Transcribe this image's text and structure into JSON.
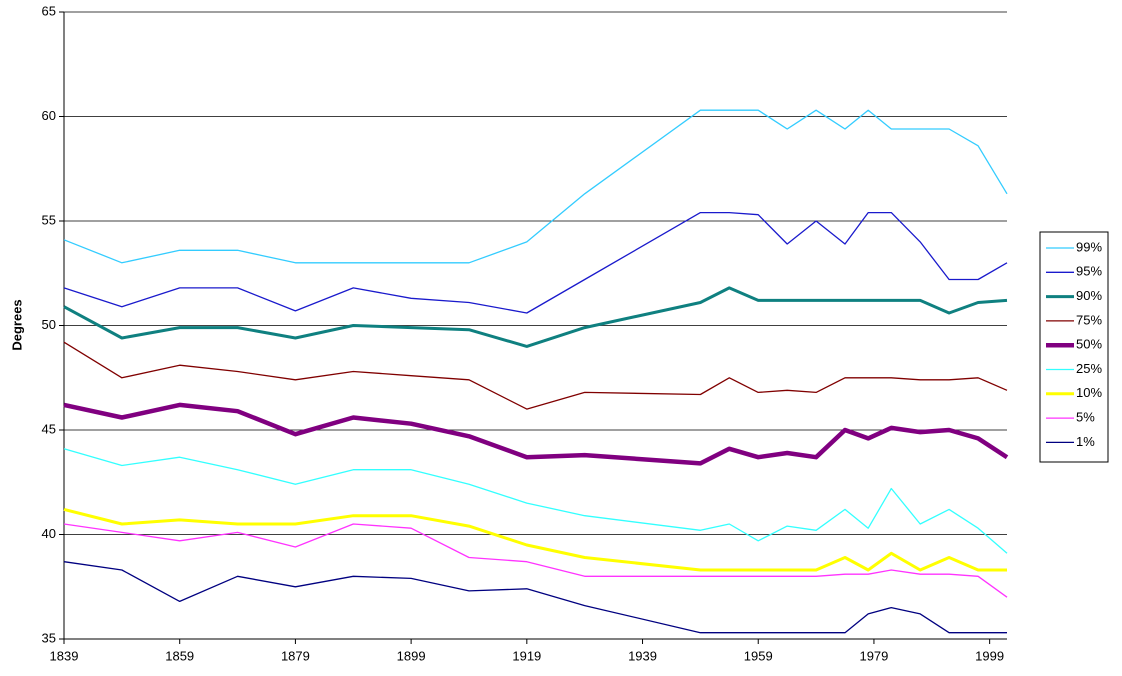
{
  "chart_data": {
    "type": "line",
    "y_label": "Degrees",
    "x": [
      1839,
      1849,
      1859,
      1869,
      1879,
      1889,
      1899,
      1909,
      1919,
      1929,
      1949,
      1954,
      1959,
      1964,
      1969,
      1974,
      1978,
      1982,
      1987,
      1992,
      1997,
      2002
    ],
    "xlim": [
      1839,
      2002
    ],
    "xticks": [
      1839,
      1859,
      1879,
      1899,
      1919,
      1939,
      1959,
      1979,
      1999
    ],
    "ylim": [
      35,
      65
    ],
    "yticks": [
      35,
      40,
      45,
      50,
      55,
      60,
      65
    ],
    "grid": true,
    "legend": "right",
    "series": [
      {
        "name": "99%",
        "color": "#33ccff",
        "line_width": 1.3,
        "values": [
          54.1,
          53.0,
          53.6,
          53.6,
          53.0,
          53.0,
          53.0,
          53.0,
          54.0,
          56.3,
          60.3,
          60.3,
          60.3,
          59.4,
          60.3,
          59.4,
          60.3,
          59.4,
          59.4,
          59.4,
          58.6,
          56.3
        ]
      },
      {
        "name": "95%",
        "color": "#1a1acc",
        "line_width": 1.3,
        "values": [
          51.8,
          50.9,
          51.8,
          51.8,
          50.7,
          51.8,
          51.3,
          51.1,
          50.6,
          52.2,
          55.4,
          55.4,
          55.3,
          53.9,
          55.0,
          53.9,
          55.4,
          55.4,
          54.0,
          52.2,
          52.2,
          53.0
        ]
      },
      {
        "name": "90%",
        "color": "#0f8080",
        "line_width": 3,
        "values": [
          50.9,
          49.4,
          49.9,
          49.9,
          49.4,
          50.0,
          49.9,
          49.8,
          49.0,
          49.9,
          51.1,
          51.8,
          51.2,
          51.2,
          51.2,
          51.2,
          51.2,
          51.2,
          51.2,
          50.6,
          51.1,
          51.2
        ]
      },
      {
        "name": "75%",
        "color": "#800000",
        "line_width": 1.3,
        "values": [
          49.2,
          47.5,
          48.1,
          47.8,
          47.4,
          47.8,
          47.6,
          47.4,
          46.0,
          46.8,
          46.7,
          47.5,
          46.8,
          46.9,
          46.8,
          47.5,
          47.5,
          47.5,
          47.4,
          47.4,
          47.5,
          46.9
        ]
      },
      {
        "name": "50%",
        "color": "#800080",
        "line_width": 4.5,
        "values": [
          46.2,
          45.6,
          46.2,
          45.9,
          44.8,
          45.6,
          45.3,
          44.7,
          43.7,
          43.8,
          43.4,
          44.1,
          43.7,
          43.9,
          43.7,
          45.0,
          44.6,
          45.1,
          44.9,
          45.0,
          44.6,
          43.7
        ]
      },
      {
        "name": "25%",
        "color": "#33ffff",
        "line_width": 1.3,
        "values": [
          44.1,
          43.3,
          43.7,
          43.1,
          42.4,
          43.1,
          43.1,
          42.4,
          41.5,
          40.9,
          40.2,
          40.5,
          39.7,
          40.4,
          40.2,
          41.2,
          40.3,
          42.2,
          40.5,
          41.2,
          40.3,
          39.1
        ]
      },
      {
        "name": "10%",
        "color": "#ffff00",
        "line_width": 3,
        "values": [
          41.2,
          40.5,
          40.7,
          40.5,
          40.5,
          40.9,
          40.9,
          40.4,
          39.5,
          38.9,
          38.3,
          38.3,
          38.3,
          38.3,
          38.3,
          38.9,
          38.3,
          39.1,
          38.3,
          38.9,
          38.3,
          38.3
        ]
      },
      {
        "name": "5%",
        "color": "#ff33ff",
        "line_width": 1.3,
        "values": [
          40.5,
          40.1,
          39.7,
          40.1,
          39.4,
          40.5,
          40.3,
          38.9,
          38.7,
          38.0,
          38.0,
          38.0,
          38.0,
          38.0,
          38.0,
          38.1,
          38.1,
          38.3,
          38.1,
          38.1,
          38.0,
          37.0
        ]
      },
      {
        "name": "1%",
        "color": "#000080",
        "line_width": 1.3,
        "values": [
          38.7,
          38.3,
          36.8,
          38.0,
          37.5,
          38.0,
          37.9,
          37.3,
          37.4,
          36.6,
          35.3,
          35.3,
          35.3,
          35.3,
          35.3,
          35.3,
          36.2,
          36.5,
          36.2,
          35.3,
          35.3,
          35.3
        ]
      }
    ]
  }
}
